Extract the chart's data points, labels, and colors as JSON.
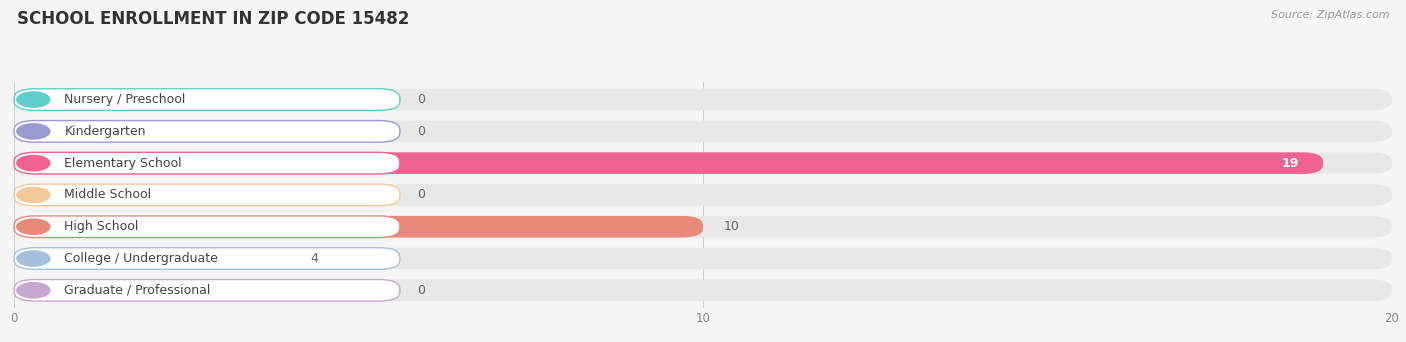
{
  "title": "SCHOOL ENROLLMENT IN ZIP CODE 15482",
  "source": "Source: ZipAtlas.com",
  "categories": [
    "Nursery / Preschool",
    "Kindergarten",
    "Elementary School",
    "Middle School",
    "High School",
    "College / Undergraduate",
    "Graduate / Professional"
  ],
  "values": [
    0,
    0,
    19,
    0,
    10,
    4,
    0
  ],
  "bar_colors": [
    "#5bcfc9",
    "#9b9bd4",
    "#f06292",
    "#f5c89a",
    "#e8897a",
    "#a8bfe0",
    "#c8a8d0"
  ],
  "label_bg_colors": [
    "#d4f0ee",
    "#ddddf0",
    "#fce4ee",
    "#fce8d0",
    "#f8d0c8",
    "#d8e4f4",
    "#e8d4ec"
  ],
  "label_border_colors": [
    "#5bcfc9",
    "#9b9bd4",
    "#f06292",
    "#f5c89a",
    "#e8897a",
    "#a8bfe0",
    "#c8a8d0"
  ],
  "xlim": [
    0,
    20
  ],
  "xticks": [
    0,
    10,
    20
  ],
  "background_color": "#f5f5f5",
  "bar_bg_color": "#e8e8e8",
  "title_fontsize": 12,
  "label_fontsize": 9,
  "value_fontsize": 9
}
